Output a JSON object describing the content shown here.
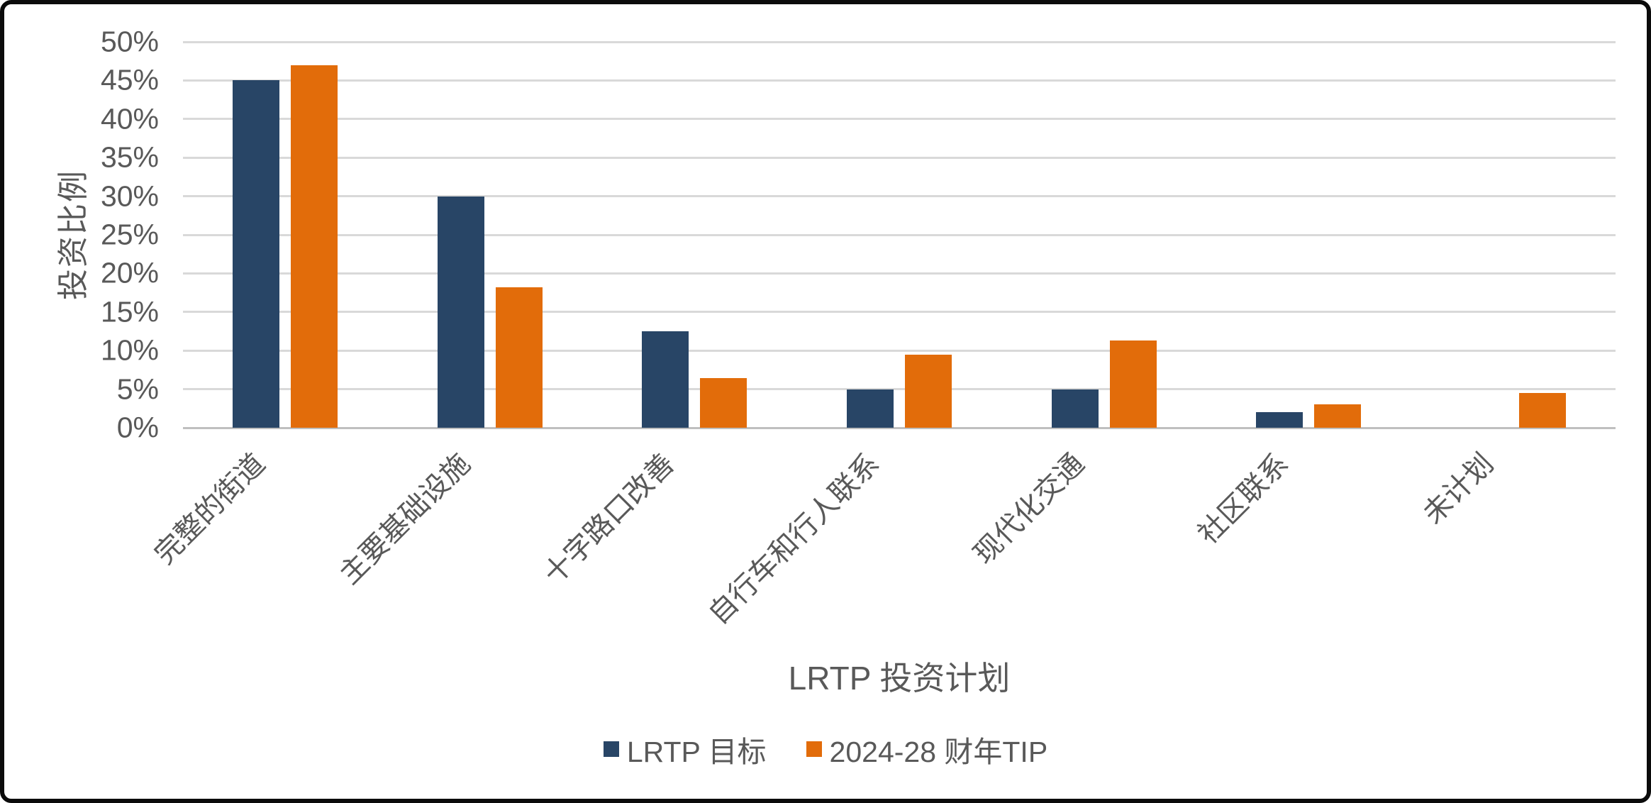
{
  "chart_data": {
    "type": "bar",
    "title": "",
    "xlabel": "LRTP 投资计划",
    "ylabel": "投资比例",
    "categories": [
      "完整的街道",
      "主要基础设施",
      "十字路口改善",
      "自行车和行人联系",
      "现代化交通",
      "社区联系",
      "未计划"
    ],
    "series": [
      {
        "name": "LRTP 目标",
        "color": "#284566",
        "values": [
          45,
          30,
          12.5,
          5,
          5,
          2,
          0
        ]
      },
      {
        "name": "2024-28 财年TIP",
        "color": "#E26C0A",
        "values": [
          47,
          18.2,
          6.4,
          9.5,
          11.3,
          3,
          4.5
        ]
      }
    ],
    "ylim": [
      0,
      50
    ],
    "ytick_step": 5,
    "y_tick_labels": [
      "0%",
      "5%",
      "10%",
      "15%",
      "20%",
      "25%",
      "30%",
      "35%",
      "40%",
      "45%",
      "50%"
    ],
    "grid": true,
    "legend_position": "bottom",
    "gridline_color": "#D9D9D9",
    "baseline_color": "#BFBFBF",
    "axis_text_color": "#595959"
  }
}
